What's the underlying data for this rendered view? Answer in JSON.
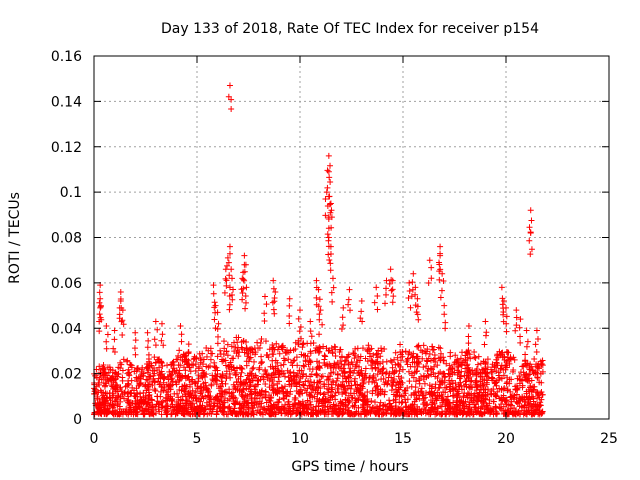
{
  "chart_data": {
    "type": "scatter",
    "title": "Day 133 of 2018, Rate Of TEC Index for receiver p154",
    "xlabel": "GPS time / hours",
    "ylabel": "ROTI / TECUs",
    "xlim": [
      0,
      25
    ],
    "ylim": [
      0,
      0.16
    ],
    "x_ticks": [
      0,
      5,
      10,
      15,
      20,
      25
    ],
    "y_ticks": [
      0,
      0.02,
      0.04,
      0.06,
      0.08,
      0.1,
      0.12,
      0.14,
      0.16
    ],
    "x_tick_labels": [
      "0",
      "5",
      "10",
      "15",
      "20",
      "25"
    ],
    "y_tick_labels": [
      "0",
      "0.02",
      "0.04",
      "0.06",
      "0.08",
      "0.1",
      "0.12",
      "0.14",
      "0.16"
    ],
    "grid": true,
    "marker": "+",
    "series_color": "#ff0000",
    "data_x_range": [
      0,
      21.8
    ],
    "baseline_envelope": [
      [
        0.0,
        0.022
      ],
      [
        0.5,
        0.025
      ],
      [
        1.0,
        0.022
      ],
      [
        1.5,
        0.028
      ],
      [
        2.0,
        0.022
      ],
      [
        2.5,
        0.026
      ],
      [
        3.0,
        0.028
      ],
      [
        3.5,
        0.024
      ],
      [
        4.0,
        0.028
      ],
      [
        4.5,
        0.03
      ],
      [
        5.0,
        0.028
      ],
      [
        5.5,
        0.032
      ],
      [
        6.0,
        0.034
      ],
      [
        6.5,
        0.036
      ],
      [
        7.0,
        0.036
      ],
      [
        7.5,
        0.034
      ],
      [
        8.0,
        0.036
      ],
      [
        8.5,
        0.034
      ],
      [
        9.0,
        0.034
      ],
      [
        9.5,
        0.032
      ],
      [
        10.0,
        0.036
      ],
      [
        10.5,
        0.034
      ],
      [
        11.0,
        0.034
      ],
      [
        11.5,
        0.032
      ],
      [
        12.0,
        0.032
      ],
      [
        12.5,
        0.032
      ],
      [
        13.0,
        0.032
      ],
      [
        13.5,
        0.034
      ],
      [
        14.0,
        0.032
      ],
      [
        14.5,
        0.03
      ],
      [
        15.0,
        0.034
      ],
      [
        15.5,
        0.032
      ],
      [
        16.0,
        0.034
      ],
      [
        16.5,
        0.032
      ],
      [
        17.0,
        0.032
      ],
      [
        17.5,
        0.028
      ],
      [
        18.0,
        0.03
      ],
      [
        18.5,
        0.03
      ],
      [
        19.0,
        0.028
      ],
      [
        19.5,
        0.03
      ],
      [
        20.0,
        0.03
      ],
      [
        20.5,
        0.028
      ],
      [
        21.0,
        0.026
      ],
      [
        21.5,
        0.028
      ],
      [
        21.8,
        0.026
      ]
    ],
    "peak_points": [
      [
        0.3,
        0.059
      ],
      [
        0.3,
        0.053
      ],
      [
        0.3,
        0.049
      ],
      [
        0.6,
        0.041
      ],
      [
        1.0,
        0.039
      ],
      [
        1.3,
        0.056
      ],
      [
        1.3,
        0.052
      ],
      [
        1.4,
        0.048
      ],
      [
        2.0,
        0.038
      ],
      [
        2.6,
        0.038
      ],
      [
        3.0,
        0.043
      ],
      [
        3.3,
        0.042
      ],
      [
        4.2,
        0.041
      ],
      [
        4.6,
        0.033
      ],
      [
        5.8,
        0.059
      ],
      [
        5.9,
        0.05
      ],
      [
        6.0,
        0.047
      ],
      [
        6.4,
        0.066
      ],
      [
        6.6,
        0.147
      ],
      [
        6.6,
        0.076
      ],
      [
        6.5,
        0.071
      ],
      [
        6.7,
        0.062
      ],
      [
        6.6,
        0.058
      ],
      [
        7.3,
        0.072
      ],
      [
        7.3,
        0.068
      ],
      [
        7.2,
        0.062
      ],
      [
        7.4,
        0.058
      ],
      [
        8.3,
        0.054
      ],
      [
        8.7,
        0.061
      ],
      [
        8.8,
        0.056
      ],
      [
        9.5,
        0.053
      ],
      [
        10.0,
        0.048
      ],
      [
        10.5,
        0.043
      ],
      [
        10.8,
        0.061
      ],
      [
        10.9,
        0.057
      ],
      [
        11.0,
        0.048
      ],
      [
        11.4,
        0.116
      ],
      [
        11.4,
        0.109
      ],
      [
        11.3,
        0.1
      ],
      [
        11.4,
        0.098
      ],
      [
        11.5,
        0.095
      ],
      [
        11.4,
        0.089
      ],
      [
        11.4,
        0.08
      ],
      [
        11.5,
        0.076
      ],
      [
        11.6,
        0.062
      ],
      [
        12.1,
        0.049
      ],
      [
        12.4,
        0.057
      ],
      [
        13.0,
        0.052
      ],
      [
        13.7,
        0.058
      ],
      [
        14.2,
        0.061
      ],
      [
        14.4,
        0.066
      ],
      [
        14.5,
        0.061
      ],
      [
        15.3,
        0.06
      ],
      [
        15.5,
        0.064
      ],
      [
        15.6,
        0.058
      ],
      [
        15.7,
        0.053
      ],
      [
        16.3,
        0.07
      ],
      [
        16.8,
        0.076
      ],
      [
        16.8,
        0.072
      ],
      [
        16.9,
        0.064
      ],
      [
        17.0,
        0.05
      ],
      [
        18.2,
        0.041
      ],
      [
        19.0,
        0.043
      ],
      [
        19.8,
        0.058
      ],
      [
        19.9,
        0.052
      ],
      [
        20.0,
        0.049
      ],
      [
        20.5,
        0.048
      ],
      [
        20.7,
        0.044
      ],
      [
        21.0,
        0.039
      ],
      [
        21.2,
        0.092
      ],
      [
        21.2,
        0.082
      ],
      [
        21.5,
        0.039
      ]
    ],
    "noise_points_per_hour": 140
  }
}
